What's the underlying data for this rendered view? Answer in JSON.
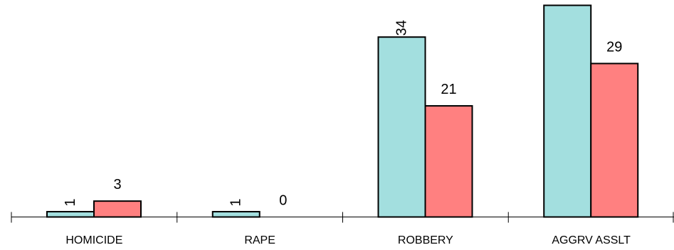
{
  "chart_data": {
    "type": "bar",
    "title": "",
    "xlabel": "",
    "ylabel": "",
    "categories": [
      "HOMICIDE",
      "RAPE",
      "ROBBERY",
      "AGGRV ASSLT"
    ],
    "series": [
      {
        "color": "#a3dfdf",
        "values": [
          1,
          1,
          34,
          40
        ],
        "labels": [
          "1",
          "1",
          "34",
          ""
        ]
      },
      {
        "color": "#ff8080",
        "values": [
          3,
          0,
          21,
          29
        ],
        "labels": [
          "3",
          "0",
          "21",
          "29"
        ]
      }
    ],
    "ylim": [
      0,
      40
    ],
    "grid": false,
    "legend": "none"
  }
}
